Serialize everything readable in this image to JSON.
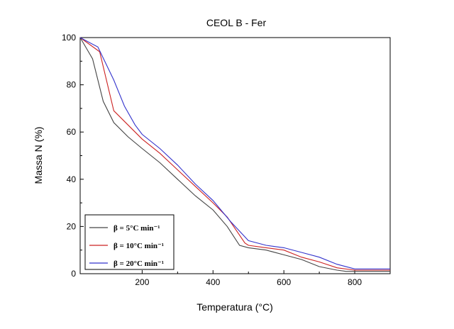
{
  "chart_data": {
    "type": "line",
    "title": "CEOL B - Fer",
    "xlabel": "Temperatura (°C)",
    "ylabel": "Massa N (%)",
    "xlim": [
      25,
      900
    ],
    "ylim": [
      0,
      100
    ],
    "xticks": [
      200,
      400,
      600,
      800
    ],
    "yticks": [
      0,
      20,
      40,
      60,
      80,
      100
    ],
    "grid": false,
    "legend": "bottom-left",
    "series": [
      {
        "name": "β = 5°C min⁻¹",
        "color": "#444444",
        "x": [
          25,
          60,
          90,
          120,
          160,
          200,
          250,
          300,
          350,
          400,
          440,
          475,
          500,
          550,
          600,
          650,
          700,
          750,
          775,
          800,
          850,
          900
        ],
        "y": [
          100,
          91,
          73,
          64,
          58,
          53,
          47,
          40,
          33,
          27,
          20,
          12,
          11,
          10,
          8,
          6,
          3,
          1.5,
          1,
          1,
          1,
          1
        ]
      },
      {
        "name": "β = 10°C min⁻¹",
        "color": "#cc2222",
        "x": [
          25,
          80,
          120,
          160,
          200,
          250,
          300,
          350,
          400,
          440,
          490,
          500,
          550,
          600,
          650,
          700,
          750,
          800,
          850,
          900
        ],
        "y": [
          100,
          94,
          69,
          63,
          57,
          51,
          44,
          37,
          30,
          24,
          13,
          12,
          11,
          10,
          7,
          5,
          2.5,
          1.5,
          1.5,
          1.5
        ]
      },
      {
        "name": "β = 20°C min⁻¹",
        "color": "#3333cc",
        "x": [
          25,
          75,
          120,
          150,
          180,
          200,
          250,
          300,
          350,
          400,
          450,
          500,
          550,
          600,
          650,
          700,
          750,
          800,
          850,
          900
        ],
        "y": [
          100,
          96,
          82,
          71,
          63,
          59,
          53,
          46,
          38,
          31,
          22,
          14,
          12,
          11,
          9,
          7,
          4,
          2,
          2,
          2
        ]
      }
    ]
  }
}
